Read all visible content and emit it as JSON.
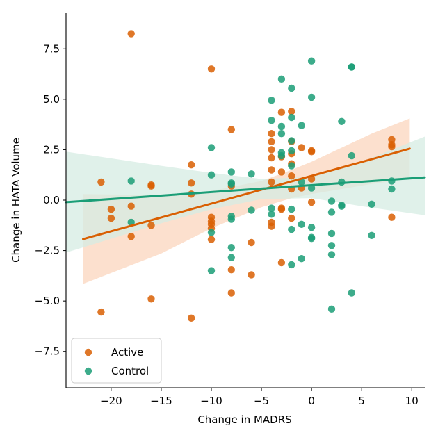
{
  "chart_data": {
    "type": "scatter",
    "title": "",
    "xlabel": "Change in MADRS",
    "ylabel": "Change in HATA Volume",
    "xlim": [
      -24.5,
      11.3
    ],
    "ylim": [
      -9.3,
      9.3
    ],
    "xticks": [
      {
        "value": -20,
        "label": "−20"
      },
      {
        "value": -15,
        "label": "−15"
      },
      {
        "value": -10,
        "label": "−10"
      },
      {
        "value": -5,
        "label": "−5"
      },
      {
        "value": 0,
        "label": "0"
      },
      {
        "value": 5,
        "label": "5"
      },
      {
        "value": 10,
        "label": "10"
      }
    ],
    "yticks": [
      {
        "value": -7.5,
        "label": "−7.5"
      },
      {
        "value": -5,
        "label": "−5.0"
      },
      {
        "value": -2.5,
        "label": "−2.5"
      },
      {
        "value": 0,
        "label": "0.0"
      },
      {
        "value": 2.5,
        "label": "2.5"
      },
      {
        "value": 5,
        "label": "5.0"
      },
      {
        "value": 7.5,
        "label": "7.5"
      }
    ],
    "grid": false,
    "legend_position": "bottom-left",
    "series": [
      {
        "name": "Active",
        "color": "#d95f02",
        "band_color": "#fbd6bd",
        "points": [
          [
            -18,
            8.25
          ],
          [
            -10,
            6.5
          ],
          [
            -21,
            0.9
          ],
          [
            -20,
            -0.45
          ],
          [
            -20,
            -0.9
          ],
          [
            -21,
            -5.55
          ],
          [
            -18,
            -0.3
          ],
          [
            -18,
            -1.8
          ],
          [
            -16,
            0.75
          ],
          [
            -16,
            0.7
          ],
          [
            -16,
            -1.25
          ],
          [
            -16,
            -4.9
          ],
          [
            -12,
            1.75
          ],
          [
            -12,
            0.85
          ],
          [
            -12,
            0.3
          ],
          [
            -12,
            -5.85
          ],
          [
            -10,
            -0.85
          ],
          [
            -10,
            -1.05
          ],
          [
            -10,
            -1.2
          ],
          [
            -10,
            -1.4
          ],
          [
            -10,
            -1.95
          ],
          [
            -8,
            3.5
          ],
          [
            -8,
            0.7
          ],
          [
            -8,
            -3.45
          ],
          [
            -8,
            -4.6
          ],
          [
            -6,
            -2.1
          ],
          [
            -6,
            -3.7
          ],
          [
            -4,
            3.3
          ],
          [
            -4,
            2.9
          ],
          [
            -4,
            2.5
          ],
          [
            -4,
            2.1
          ],
          [
            -4,
            1.5
          ],
          [
            -4,
            0.9
          ],
          [
            -4,
            -1.1
          ],
          [
            -4,
            -1.3
          ],
          [
            -3,
            4.35
          ],
          [
            -3,
            2.15
          ],
          [
            -3,
            1.4
          ],
          [
            -3,
            -0.4
          ],
          [
            -3,
            -0.45
          ],
          [
            -3,
            -3.1
          ],
          [
            -2,
            4.4
          ],
          [
            -2,
            2.9
          ],
          [
            -2,
            2.3
          ],
          [
            -2,
            1.8
          ],
          [
            -2,
            1.2
          ],
          [
            -2,
            0.55
          ],
          [
            -2,
            -0.9
          ],
          [
            -1,
            2.6
          ],
          [
            -1,
            0.6
          ],
          [
            0,
            2.45
          ],
          [
            0,
            2.4
          ],
          [
            0,
            1.05
          ],
          [
            0,
            -0.1
          ],
          [
            8,
            3.0
          ],
          [
            8,
            2.75
          ],
          [
            8,
            2.65
          ],
          [
            8,
            -0.85
          ]
        ],
        "regression": {
          "x": [
            -22.8,
            9.8
          ],
          "y": [
            -1.93,
            2.55
          ]
        },
        "ci_band": {
          "x": [
            -22.8,
            -15,
            -10,
            -5,
            -2,
            0,
            3,
            6,
            9.8
          ],
          "upper": [
            0.3,
            0.25,
            0.45,
            0.95,
            1.5,
            1.9,
            2.6,
            3.3,
            4.05
          ],
          "lower": [
            -4.15,
            -2.65,
            -1.4,
            -0.35,
            0.1,
            0.3,
            0.55,
            0.8,
            1.05
          ]
        }
      },
      {
        "name": "Control",
        "color": "#1b9e77",
        "band_color": "#d5ece3",
        "points": [
          [
            0,
            6.9
          ],
          [
            4,
            6.6
          ],
          [
            4,
            6.6
          ],
          [
            -3,
            6.0
          ],
          [
            -2,
            5.55
          ],
          [
            0,
            5.1
          ],
          [
            -4,
            4.95
          ],
          [
            -2,
            4.1
          ],
          [
            -4,
            3.95
          ],
          [
            3,
            3.9
          ],
          [
            -1,
            3.7
          ],
          [
            -3,
            3.65
          ],
          [
            -3,
            3.3
          ],
          [
            -2,
            2.95
          ],
          [
            -10,
            2.6
          ],
          [
            -2,
            2.45
          ],
          [
            -3,
            2.35
          ],
          [
            4,
            2.2
          ],
          [
            -2,
            1.7
          ],
          [
            -8,
            1.4
          ],
          [
            -6,
            1.3
          ],
          [
            -10,
            1.25
          ],
          [
            -18,
            0.95
          ],
          [
            -1,
            0.9
          ],
          [
            3,
            0.9
          ],
          [
            8,
            0.95
          ],
          [
            -8,
            0.85
          ],
          [
            -8,
            0.8
          ],
          [
            0,
            0.6
          ],
          [
            8,
            0.55
          ],
          [
            -18,
            -1.1
          ],
          [
            -10,
            -1.6
          ],
          [
            -8,
            -0.8
          ],
          [
            -8,
            -0.95
          ],
          [
            -6,
            -0.5
          ],
          [
            -4,
            -0.4
          ],
          [
            -4,
            -0.7
          ],
          [
            -3,
            2.2
          ],
          [
            -2,
            -0.45
          ],
          [
            -2,
            -1.45
          ],
          [
            -1,
            -1.2
          ],
          [
            0,
            -1.35
          ],
          [
            0,
            -1.85
          ],
          [
            0,
            -1.9
          ],
          [
            2,
            -0.05
          ],
          [
            2,
            -0.6
          ],
          [
            3,
            -0.25
          ],
          [
            3,
            -0.3
          ],
          [
            6,
            -0.2
          ],
          [
            2,
            -1.65
          ],
          [
            2,
            -2.25
          ],
          [
            2,
            -2.7
          ],
          [
            6,
            -1.75
          ],
          [
            -8,
            -2.35
          ],
          [
            -8,
            -2.85
          ],
          [
            -10,
            -3.5
          ],
          [
            -2,
            -3.2
          ],
          [
            -1,
            -2.9
          ],
          [
            2,
            -5.4
          ],
          [
            4,
            -4.6
          ]
        ],
        "regression": {
          "x": [
            -24.5,
            11.3
          ],
          "y": [
            -0.1,
            1.13
          ]
        },
        "ci_band": {
          "x": [
            -24.5,
            -15,
            -10,
            -5,
            0,
            5,
            11.3
          ],
          "upper": [
            2.4,
            1.7,
            1.35,
            1.05,
            1.15,
            1.9,
            3.15
          ],
          "lower": [
            -2.6,
            -1.15,
            -0.45,
            0.05,
            0.1,
            -0.3,
            -0.75
          ]
        }
      }
    ]
  }
}
